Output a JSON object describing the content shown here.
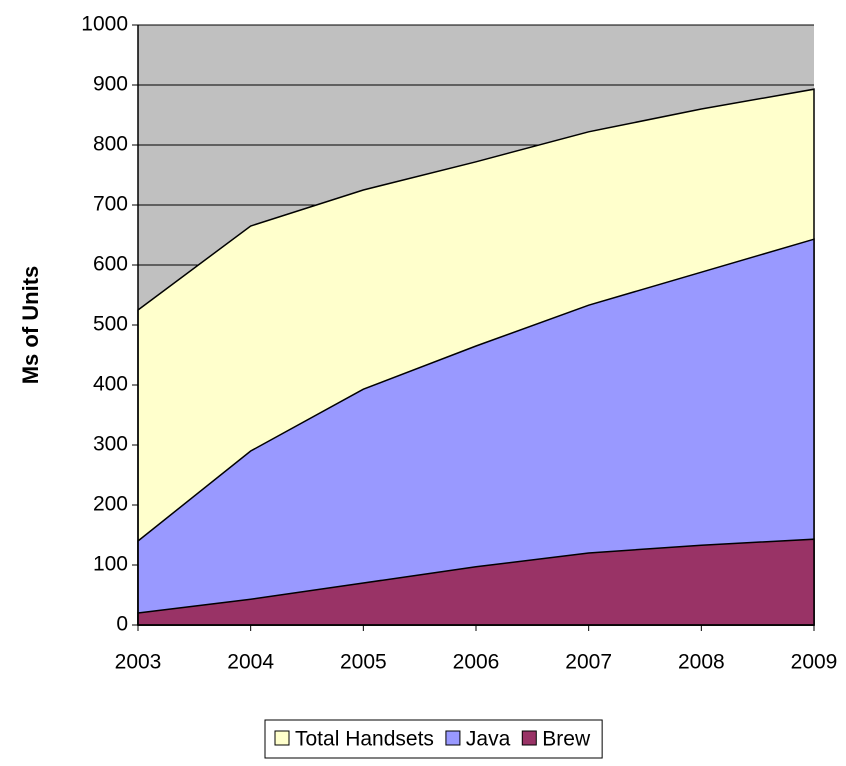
{
  "chart_data": {
    "type": "area",
    "y_label": "Ms of Units",
    "categories": [
      "2003",
      "2004",
      "2005",
      "2006",
      "2007",
      "2008",
      "2009"
    ],
    "series": [
      {
        "name": "Total Handsets",
        "color": "#ffffcc",
        "values": [
          525,
          665,
          725,
          772,
          822,
          860,
          893
        ]
      },
      {
        "name": "Java",
        "color": "#9999ff",
        "values": [
          140,
          290,
          393,
          465,
          533,
          588,
          643
        ]
      },
      {
        "name": "Brew",
        "color": "#993366",
        "values": [
          20,
          43,
          70,
          97,
          120,
          133,
          143
        ]
      }
    ],
    "ylim": [
      0,
      1000
    ],
    "yticks": [
      0,
      100,
      200,
      300,
      400,
      500,
      600,
      700,
      800,
      900,
      1000
    ],
    "grid": true,
    "plot_background": "#c0c0c0",
    "legend": "bottom"
  }
}
